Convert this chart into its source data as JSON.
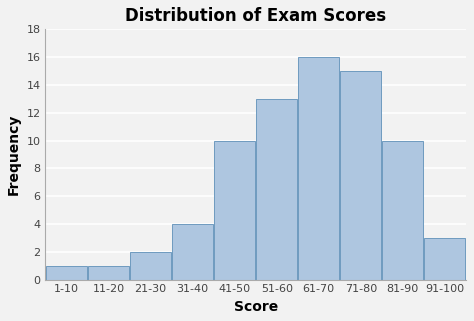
{
  "title": "Distribution of Exam Scores",
  "xlabel": "Score",
  "ylabel": "Frequency",
  "categories": [
    "1-10",
    "11-20",
    "21-30",
    "31-40",
    "41-50",
    "51-60",
    "61-70",
    "71-80",
    "81-90",
    "91-100"
  ],
  "values": [
    1,
    1,
    2,
    4,
    10,
    13,
    16,
    15,
    10,
    3
  ],
  "bar_color": "#aec6e0",
  "bar_edgecolor": "#6e9abf",
  "ylim": [
    0,
    18
  ],
  "yticks": [
    0,
    2,
    4,
    6,
    8,
    10,
    12,
    14,
    16,
    18
  ],
  "title_fontsize": 12,
  "title_fontweight": "bold",
  "axis_label_fontsize": 10,
  "tick_fontsize": 8,
  "background_color": "#f2f2f2",
  "plot_background": "#f2f2f2",
  "grid_color": "#ffffff",
  "grid_linewidth": 1.2
}
